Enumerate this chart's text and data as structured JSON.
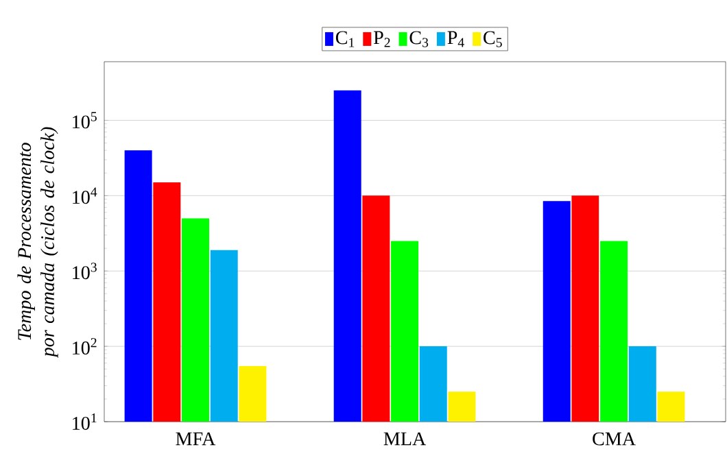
{
  "chart_data": {
    "type": "bar",
    "ylabel": "Tempo de Processamento por camada (ciclos de clock)",
    "categories": [
      "MFA",
      "MLA",
      "CMA"
    ],
    "series": [
      {
        "name": "C$_{1}$",
        "color": "#0000ff",
        "values": [
          40000,
          250000,
          8500
        ]
      },
      {
        "name": "P$_{2}$",
        "color": "#ff0000",
        "values": [
          15000,
          10000,
          10000
        ]
      },
      {
        "name": "C$_{3}$",
        "color": "#00ff00",
        "values": [
          5000,
          2500,
          2500
        ]
      },
      {
        "name": "P$_{4}$",
        "color": "#00aeef",
        "values": [
          1900,
          100,
          100
        ]
      },
      {
        "name": "C$_{5}$",
        "color": "#fff200",
        "values": [
          55,
          25,
          25
        ]
      }
    ],
    "log": "y",
    "ylim": [
      10,
      600000
    ],
    "yticks": [
      {
        "value": 10,
        "label": "10$^{1}$"
      },
      {
        "value": 100,
        "label": "10$^{2}$"
      },
      {
        "value": 1000,
        "label": "10$^{3}$"
      },
      {
        "value": 10000,
        "label": "10$^{4}$"
      },
      {
        "value": 100000,
        "label": "10$^{5}$"
      }
    ],
    "grid": "y",
    "legend": "top"
  }
}
